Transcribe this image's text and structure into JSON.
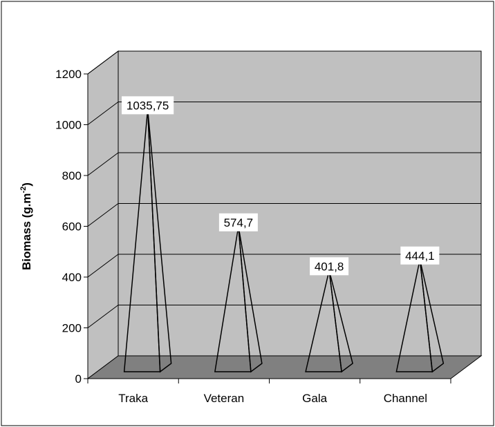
{
  "chart_data": {
    "type": "bar",
    "bar_shape": "pyramid",
    "three_d": true,
    "categories": [
      "Traka",
      "Veteran",
      "Gala",
      "Channel"
    ],
    "values": [
      1035.75,
      574.7,
      401.8,
      444.1
    ],
    "data_labels": [
      "1035,75",
      "574,7",
      "401,8",
      "444,1"
    ],
    "title": "",
    "xlabel": "",
    "ylabel_main": "Biomass (g.m",
    "ylabel_sup": "-2",
    "ylabel_close": ")",
    "ylim": [
      0,
      1200
    ],
    "yticks": [
      0,
      200,
      400,
      600,
      800,
      1000,
      1200
    ],
    "ytick_labels": [
      "0",
      "200",
      "400",
      "600",
      "800",
      "1000",
      "1200"
    ],
    "grid": true,
    "legend": "none",
    "colors": {
      "wall": "#c0c0c0",
      "floor": "#808080",
      "gridline": "#000000",
      "bar_fill": "none",
      "bar_stroke": "#000000"
    }
  }
}
